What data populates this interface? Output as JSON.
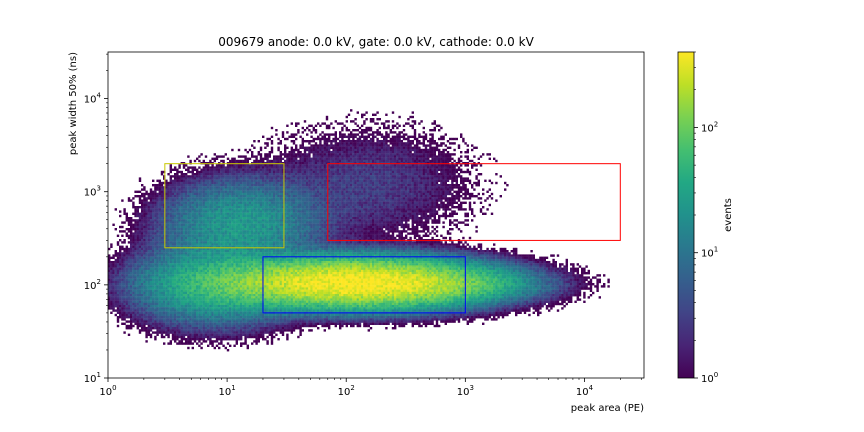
{
  "chart_data": {
    "type": "heatmap",
    "title": "009679 anode: 0.0 kV, gate: 0.0 kV, cathode: 0.0 kV",
    "xlabel": "peak area (PE)",
    "ylabel": "peak width 50% (ns)",
    "xscale": "log",
    "yscale": "log",
    "xlim": [
      1,
      31622
    ],
    "ylim": [
      10,
      31622
    ],
    "x_ticks": [
      {
        "value": 1,
        "base": "10",
        "exp": "0"
      },
      {
        "value": 10,
        "base": "10",
        "exp": "1"
      },
      {
        "value": 100,
        "base": "10",
        "exp": "2"
      },
      {
        "value": 1000,
        "base": "10",
        "exp": "3"
      },
      {
        "value": 10000,
        "base": "10",
        "exp": "4"
      }
    ],
    "y_ticks": [
      {
        "value": 10,
        "base": "10",
        "exp": "1"
      },
      {
        "value": 100,
        "base": "10",
        "exp": "2"
      },
      {
        "value": 1000,
        "base": "10",
        "exp": "3"
      },
      {
        "value": 10000,
        "base": "10",
        "exp": "4"
      }
    ],
    "colorbar": {
      "label": "events",
      "scale": "log",
      "colormap": "viridis",
      "range": [
        1,
        400
      ],
      "ticks": [
        {
          "value": 1,
          "base": "10",
          "exp": "0"
        },
        {
          "value": 10,
          "base": "10",
          "exp": "1"
        },
        {
          "value": 100,
          "base": "10",
          "exp": "2"
        }
      ]
    },
    "density_clusters": [
      {
        "x_center": 110,
        "y_center": 105,
        "x_spread_decades": 0.55,
        "y_spread_decades": 0.13,
        "peak_events": 400
      },
      {
        "x_center": 8,
        "y_center": 100,
        "x_spread_decades": 0.35,
        "y_spread_decades": 0.22,
        "peak_events": 40
      },
      {
        "x_center": 13,
        "y_center": 450,
        "x_spread_decades": 0.35,
        "y_spread_decades": 0.25,
        "peak_events": 25
      },
      {
        "x_center": 400,
        "y_center": 100,
        "x_spread_decades": 0.45,
        "y_spread_decades": 0.09,
        "peak_events": 60
      },
      {
        "x_center": 150,
        "y_center": 1200,
        "x_spread_decades": 0.5,
        "y_spread_decades": 0.35,
        "peak_events": 3
      }
    ],
    "selection_boxes": [
      {
        "x_min": 3,
        "x_max": 30,
        "y_min": 250,
        "y_max": 2000,
        "color": "#c8c800"
      },
      {
        "x_min": 70,
        "x_max": 20000,
        "y_min": 300,
        "y_max": 2000,
        "color": "#ff0000"
      },
      {
        "x_min": 20,
        "x_max": 1000,
        "y_min": 50,
        "y_max": 200,
        "color": "#0000ff"
      }
    ]
  }
}
